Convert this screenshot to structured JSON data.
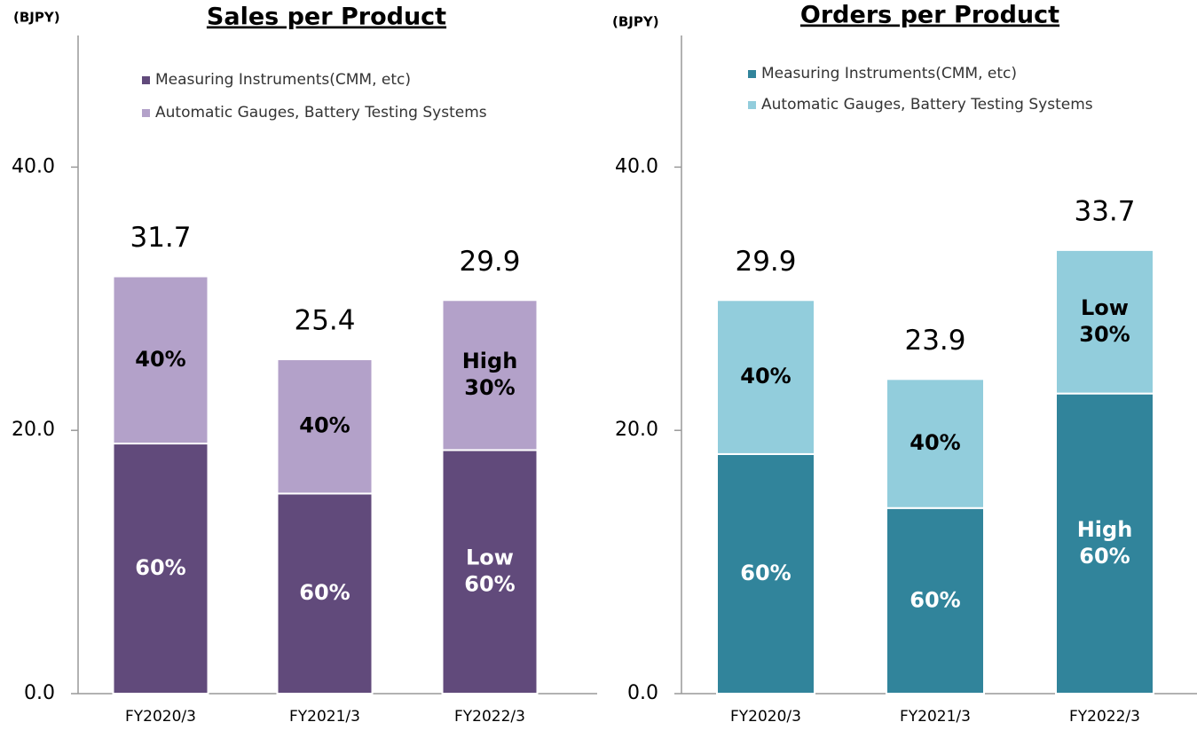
{
  "chart_data": [
    {
      "type": "stacked_bar",
      "title": "Sales per Product",
      "unit": "(BJPY)",
      "categories": [
        "FY2020/3",
        "FY2021/3",
        "FY2022/3"
      ],
      "series": [
        {
          "name": "Measuring Instruments(CMM, etc)",
          "color": "#614a7b",
          "values": [
            19.0,
            15.2,
            18.5
          ],
          "segment_labels": [
            [
              "60%"
            ],
            [
              "60%"
            ],
            [
              "Low",
              "60%"
            ]
          ]
        },
        {
          "name": "Automatic Gauges, Battery Testing Systems",
          "color": "#b3a1c9",
          "values": [
            12.7,
            10.2,
            11.4
          ],
          "segment_labels": [
            [
              "40%"
            ],
            [
              "40%"
            ],
            [
              "High",
              "30%"
            ]
          ]
        }
      ],
      "totals": [
        "31.7",
        "25.4",
        "29.9"
      ],
      "ylim": [
        0,
        50
      ],
      "yticks": [
        {
          "value": 0,
          "label": "0.0"
        },
        {
          "value": 20,
          "label": "20.0"
        },
        {
          "value": 40,
          "label": "40.0"
        }
      ]
    },
    {
      "type": "stacked_bar",
      "title": "Orders per Product",
      "unit": "(BJPY)",
      "categories": [
        "FY2020/3",
        "FY2021/3",
        "FY2022/3"
      ],
      "series": [
        {
          "name": "Measuring Instruments(CMM, etc)",
          "color": "#31849b",
          "values": [
            18.2,
            14.1,
            22.8
          ],
          "segment_labels": [
            [
              "60%"
            ],
            [
              "60%"
            ],
            [
              "High",
              "60%"
            ]
          ]
        },
        {
          "name": "Automatic Gauges, Battery Testing Systems",
          "color": "#92cddc",
          "values": [
            11.7,
            9.8,
            10.9
          ],
          "segment_labels": [
            [
              "40%"
            ],
            [
              "40%"
            ],
            [
              "Low",
              "30%"
            ]
          ]
        }
      ],
      "totals": [
        "29.9",
        "23.9",
        "33.7"
      ],
      "ylim": [
        0,
        50
      ],
      "yticks": [
        {
          "value": 0,
          "label": "0.0"
        },
        {
          "value": 20,
          "label": "20.0"
        },
        {
          "value": 40,
          "label": "40.0"
        }
      ]
    }
  ]
}
